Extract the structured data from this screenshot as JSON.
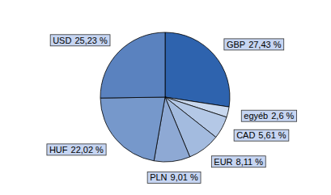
{
  "chart_data": {
    "type": "pie",
    "categories": [
      "GBP",
      "egyéb",
      "CAD",
      "EUR",
      "PLN",
      "HUF",
      "USD"
    ],
    "values": [
      27.43,
      2.6,
      5.61,
      8.11,
      9.01,
      22.02,
      25.23
    ],
    "value_labels": [
      "27,43 %",
      "2,6 %",
      "5,61 %",
      "8,11 %",
      "9,01 %",
      "22,02 %",
      "25,23 %"
    ],
    "colors": [
      "#2e63ae",
      "#c9d8ee",
      "#b4c8e6",
      "#a3bbdf",
      "#8ea9d4",
      "#7698cb",
      "#5a82bf"
    ],
    "data_labels": true
  }
}
